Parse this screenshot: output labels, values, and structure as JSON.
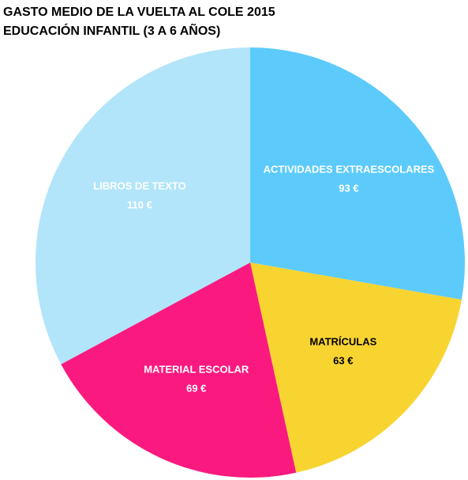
{
  "chart_data": {
    "type": "pie",
    "title": "GASTO MEDIO DE LA VUELTA AL COLE 2015",
    "subtitle": "EDUCACIÓN INFANTIL (3 A 6 AÑOS)",
    "categories": [
      "ACTIVIDADES EXTRAESCOLARES",
      "MATRÍCULAS",
      "MATERIAL ESCOLAR",
      "LIBROS DE TEXTO"
    ],
    "values": [
      93,
      63,
      69,
      110
    ],
    "value_labels": [
      "93 €",
      "63 €",
      "69 €",
      "110 €"
    ],
    "colors": [
      "#5ccbfb",
      "#f8d431",
      "#fa1a7f",
      "#b2e5fa"
    ],
    "label_colors": [
      "#ffffff",
      "#000000",
      "#ffffff",
      "#ffffff"
    ]
  }
}
